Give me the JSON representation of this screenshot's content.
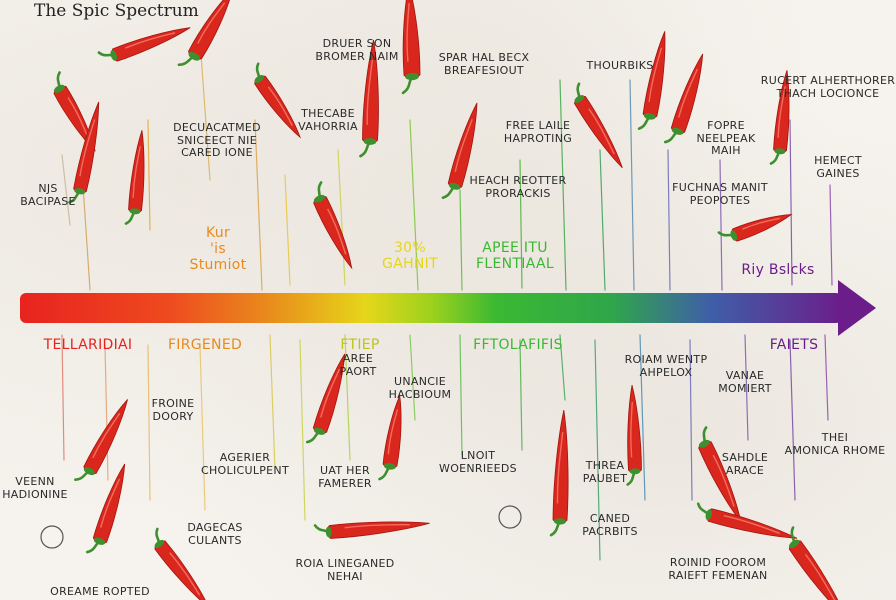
{
  "title": "The Spic Spectrum",
  "colors": {
    "red": "#e8231f",
    "orange": "#e98a1c",
    "yellow": "#e6d61a",
    "green": "#3bb833",
    "purple": "#6b1e8a",
    "pepper": "#d9271d",
    "stem": "#3e8f2e",
    "ink": "#2a2a2a"
  },
  "top_labels": [
    "DRUER SON\nBROMER NAIM",
    "SPAR HAL BECX\nBREAFESIOUT",
    "THOURBIKS",
    "RUCERT ALHERTHORER\nTHACH LOCIONCE",
    "DECUACATMED\nSNICEECT NIE\nCARED IONE",
    "THECABE\nVAHORRIA",
    "FREE LAILE\nHAPROTING",
    "FOPRE\nNEELPEAK\nMAIH",
    "NJS\nBACIPASE",
    "HEACH REOTTER\nPRORACKIS",
    "FUCHNAS MANIT\nPEOPOTES",
    "HEMECT\nGAINES"
  ],
  "scale_labels_top": [
    "Kur\n'is\nStumiot",
    "30%\nGAHNIT",
    "APEE ITU\nFLENTIAAL",
    "Riy Bslcks"
  ],
  "scale_labels_bottom": [
    "TELLARIDIAI",
    "FIRGENED",
    "FTIEP",
    "FFTOLAFIFIS",
    "FAIETS"
  ],
  "bottom_labels": [
    "AREE\nPAORT",
    "ROIAM WENTP\nAHPELOX",
    "VANAE\nMOMIERT",
    "FROINE\nDOORY",
    "UNANCIE\nHACBIOUM",
    "THEI\nAMONICA RHOME",
    "VEENN\nHADIONINE",
    "AGERIER\nCHOLICULPENT",
    "UAT HER\nFAMERER",
    "LNOIT\nWOENRIEEDS",
    "THREA\nPAUBET",
    "SAHDLE\nARACE",
    "DAGECAS\nCULANTS",
    "CANED\nPACRBITS",
    "ROIA LINEGANED\nNEHAI",
    "ROINID FOOROM\nRAIEFT FEMENAN",
    "OREAME ROPTED"
  ]
}
